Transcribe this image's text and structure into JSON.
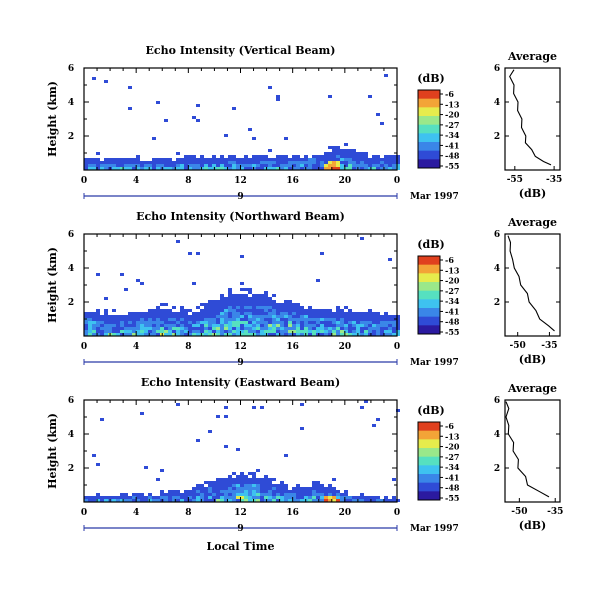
{
  "colors": {
    "scale": [
      "#2b1aa0",
      "#2f4bd6",
      "#3a86e8",
      "#3ec2f0",
      "#56e0c0",
      "#9ae88a",
      "#e6ec4c",
      "#f3a437",
      "#e0401e"
    ],
    "border": "#000000",
    "day_marker": "#2b3aa8"
  },
  "chart_data": [
    {
      "type": "heatmap",
      "title": "Echo Intensity (Vertical Beam)",
      "ylabel": "Height (km)",
      "xticks": [
        "0",
        "4",
        "8",
        "12",
        "16",
        "20",
        "0"
      ],
      "xlim": [
        0,
        24
      ],
      "yticks": [
        "2",
        "4",
        "6"
      ],
      "ylim": [
        0,
        6
      ],
      "day": "9",
      "date_label": "Mar 1997",
      "colorbar": {
        "unit": "(dB)",
        "labels": [
          "-6",
          "-13",
          "-20",
          "-27",
          "-34",
          "-41",
          "-48",
          "-55"
        ]
      },
      "echo_top_km": [
        {
          "t": 0,
          "h": 0.7
        },
        {
          "t": 2,
          "h": 0.7
        },
        {
          "t": 4,
          "h": 0.8
        },
        {
          "t": 6,
          "h": 0.6
        },
        {
          "t": 8,
          "h": 0.8
        },
        {
          "t": 10,
          "h": 0.9
        },
        {
          "t": 12,
          "h": 0.9
        },
        {
          "t": 14,
          "h": 0.9
        },
        {
          "t": 16,
          "h": 0.9
        },
        {
          "t": 18,
          "h": 1.0
        },
        {
          "t": 19,
          "h": 1.4
        },
        {
          "t": 20,
          "h": 1.5
        },
        {
          "t": 22,
          "h": 0.9
        },
        {
          "t": 24,
          "h": 0.8
        }
      ],
      "average": {
        "title": "Average",
        "xlabel": "(dB)",
        "xticks": [
          "-55",
          "-35"
        ],
        "yticks": [
          "2",
          "4",
          "6"
        ],
        "xlim": [
          -60,
          -32
        ],
        "ylim": [
          0,
          6
        ],
        "profile": [
          {
            "h": 0.3,
            "db": -36
          },
          {
            "h": 0.5,
            "db": -41
          },
          {
            "h": 0.8,
            "db": -44
          },
          {
            "h": 1.2,
            "db": -47
          },
          {
            "h": 1.6,
            "db": -49
          },
          {
            "h": 2.0,
            "db": -50
          },
          {
            "h": 2.5,
            "db": -51
          },
          {
            "h": 3.0,
            "db": -52
          },
          {
            "h": 3.5,
            "db": -53
          },
          {
            "h": 4.0,
            "db": -54
          },
          {
            "h": 4.5,
            "db": -55
          },
          {
            "h": 5.0,
            "db": -56
          },
          {
            "h": 5.5,
            "db": -57
          },
          {
            "h": 5.9,
            "db": -56
          }
        ]
      }
    },
    {
      "type": "heatmap",
      "title": "Echo Intensity (Northward Beam)",
      "ylabel": "Height (km)",
      "xticks": [
        "0",
        "4",
        "8",
        "12",
        "16",
        "20",
        "0"
      ],
      "xlim": [
        0,
        24
      ],
      "yticks": [
        "2",
        "4",
        "6"
      ],
      "ylim": [
        0,
        6
      ],
      "day": "9",
      "date_label": "Mar 1997",
      "colorbar": {
        "unit": "(dB)",
        "labels": [
          "-6",
          "-13",
          "-20",
          "-27",
          "-34",
          "-41",
          "-48",
          "-55"
        ]
      },
      "echo_top_km": [
        {
          "t": 0,
          "h": 1.7
        },
        {
          "t": 2,
          "h": 1.5
        },
        {
          "t": 4,
          "h": 1.4
        },
        {
          "t": 6,
          "h": 1.9
        },
        {
          "t": 8,
          "h": 1.5
        },
        {
          "t": 10,
          "h": 2.2
        },
        {
          "t": 12,
          "h": 2.8
        },
        {
          "t": 14,
          "h": 2.6
        },
        {
          "t": 16,
          "h": 2.0
        },
        {
          "t": 18,
          "h": 1.6
        },
        {
          "t": 20,
          "h": 1.7
        },
        {
          "t": 22,
          "h": 1.5
        },
        {
          "t": 24,
          "h": 1.4
        }
      ],
      "average": {
        "title": "Average",
        "xlabel": "(dB)",
        "xticks": [
          "-50",
          "-35"
        ],
        "yticks": [
          "2",
          "4",
          "6"
        ],
        "xlim": [
          -56,
          -30
        ],
        "ylim": [
          0,
          6
        ],
        "profile": [
          {
            "h": 0.3,
            "db": -32
          },
          {
            "h": 0.6,
            "db": -36
          },
          {
            "h": 1.0,
            "db": -39
          },
          {
            "h": 1.5,
            "db": -42
          },
          {
            "h": 2.0,
            "db": -44
          },
          {
            "h": 2.5,
            "db": -46
          },
          {
            "h": 3.0,
            "db": -48
          },
          {
            "h": 3.5,
            "db": -50
          },
          {
            "h": 4.0,
            "db": -51
          },
          {
            "h": 4.5,
            "db": -53
          },
          {
            "h": 5.0,
            "db": -53
          },
          {
            "h": 5.5,
            "db": -54
          },
          {
            "h": 5.9,
            "db": -54
          }
        ]
      }
    },
    {
      "type": "heatmap",
      "title": "Echo Intensity (Eastward Beam)",
      "ylabel": "Height (km)",
      "xticks": [
        "0",
        "4",
        "8",
        "12",
        "16",
        "20",
        "0"
      ],
      "xlim": [
        0,
        24
      ],
      "yticks": [
        "2",
        "4",
        "6"
      ],
      "ylim": [
        0,
        6
      ],
      "day": "9",
      "date_label": "Mar 1997",
      "xlabel": "Local Time",
      "colorbar": {
        "unit": "(dB)",
        "labels": [
          "-6",
          "-13",
          "-20",
          "-27",
          "-34",
          "-41",
          "-48",
          "-55"
        ]
      },
      "echo_top_km": [
        {
          "t": 0,
          "h": 0.4
        },
        {
          "t": 2,
          "h": 0.5
        },
        {
          "t": 4,
          "h": 0.5
        },
        {
          "t": 6,
          "h": 0.6
        },
        {
          "t": 8,
          "h": 0.8
        },
        {
          "t": 10,
          "h": 1.3
        },
        {
          "t": 12,
          "h": 1.9
        },
        {
          "t": 14,
          "h": 1.5
        },
        {
          "t": 16,
          "h": 0.9
        },
        {
          "t": 18,
          "h": 1.2
        },
        {
          "t": 19,
          "h": 1.0
        },
        {
          "t": 20,
          "h": 0.6
        },
        {
          "t": 22,
          "h": 0.4
        },
        {
          "t": 24,
          "h": 0.3
        }
      ],
      "average": {
        "title": "Average",
        "xlabel": "(dB)",
        "xticks": [
          "-50",
          "-35"
        ],
        "yticks": [
          "2",
          "4",
          "6"
        ],
        "xlim": [
          -56,
          -33
        ],
        "ylim": [
          0,
          6
        ],
        "profile": [
          {
            "h": 0.3,
            "db": -37
          },
          {
            "h": 0.6,
            "db": -42
          },
          {
            "h": 1.0,
            "db": -46
          },
          {
            "h": 1.5,
            "db": -48
          },
          {
            "h": 2.0,
            "db": -50
          },
          {
            "h": 2.5,
            "db": -51
          },
          {
            "h": 3.0,
            "db": -52
          },
          {
            "h": 3.5,
            "db": -53
          },
          {
            "h": 4.0,
            "db": -54
          },
          {
            "h": 4.5,
            "db": -55
          },
          {
            "h": 5.0,
            "db": -55
          },
          {
            "h": 5.5,
            "db": -55
          },
          {
            "h": 5.9,
            "db": -55
          }
        ]
      }
    }
  ]
}
